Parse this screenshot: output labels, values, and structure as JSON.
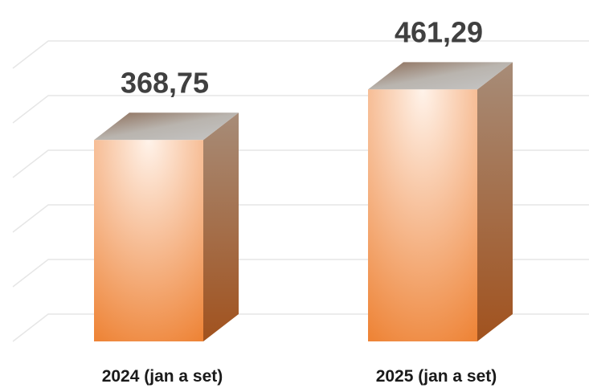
{
  "chart_data": {
    "type": "bar",
    "style": "3d-column",
    "categories": [
      "2024 (jan a set)",
      "2025 (jan a set)"
    ],
    "values": [
      368.75,
      461.29
    ],
    "value_labels": [
      "368,75",
      "461,29"
    ],
    "title": "",
    "xlabel": "",
    "ylabel": "",
    "ylim": [
      0,
      500
    ],
    "grid": true,
    "legend": "none",
    "colors": {
      "bar_front_light": "#fff3ea",
      "bar_front_dark": "#ee8437",
      "bar_top": "#b9b4ae",
      "bar_side_light": "#a78c78",
      "bar_side_dark": "#a1521e",
      "gridline": "#e6e6e6",
      "value_text": "#404040",
      "category_text": "#1a1a1a"
    }
  }
}
